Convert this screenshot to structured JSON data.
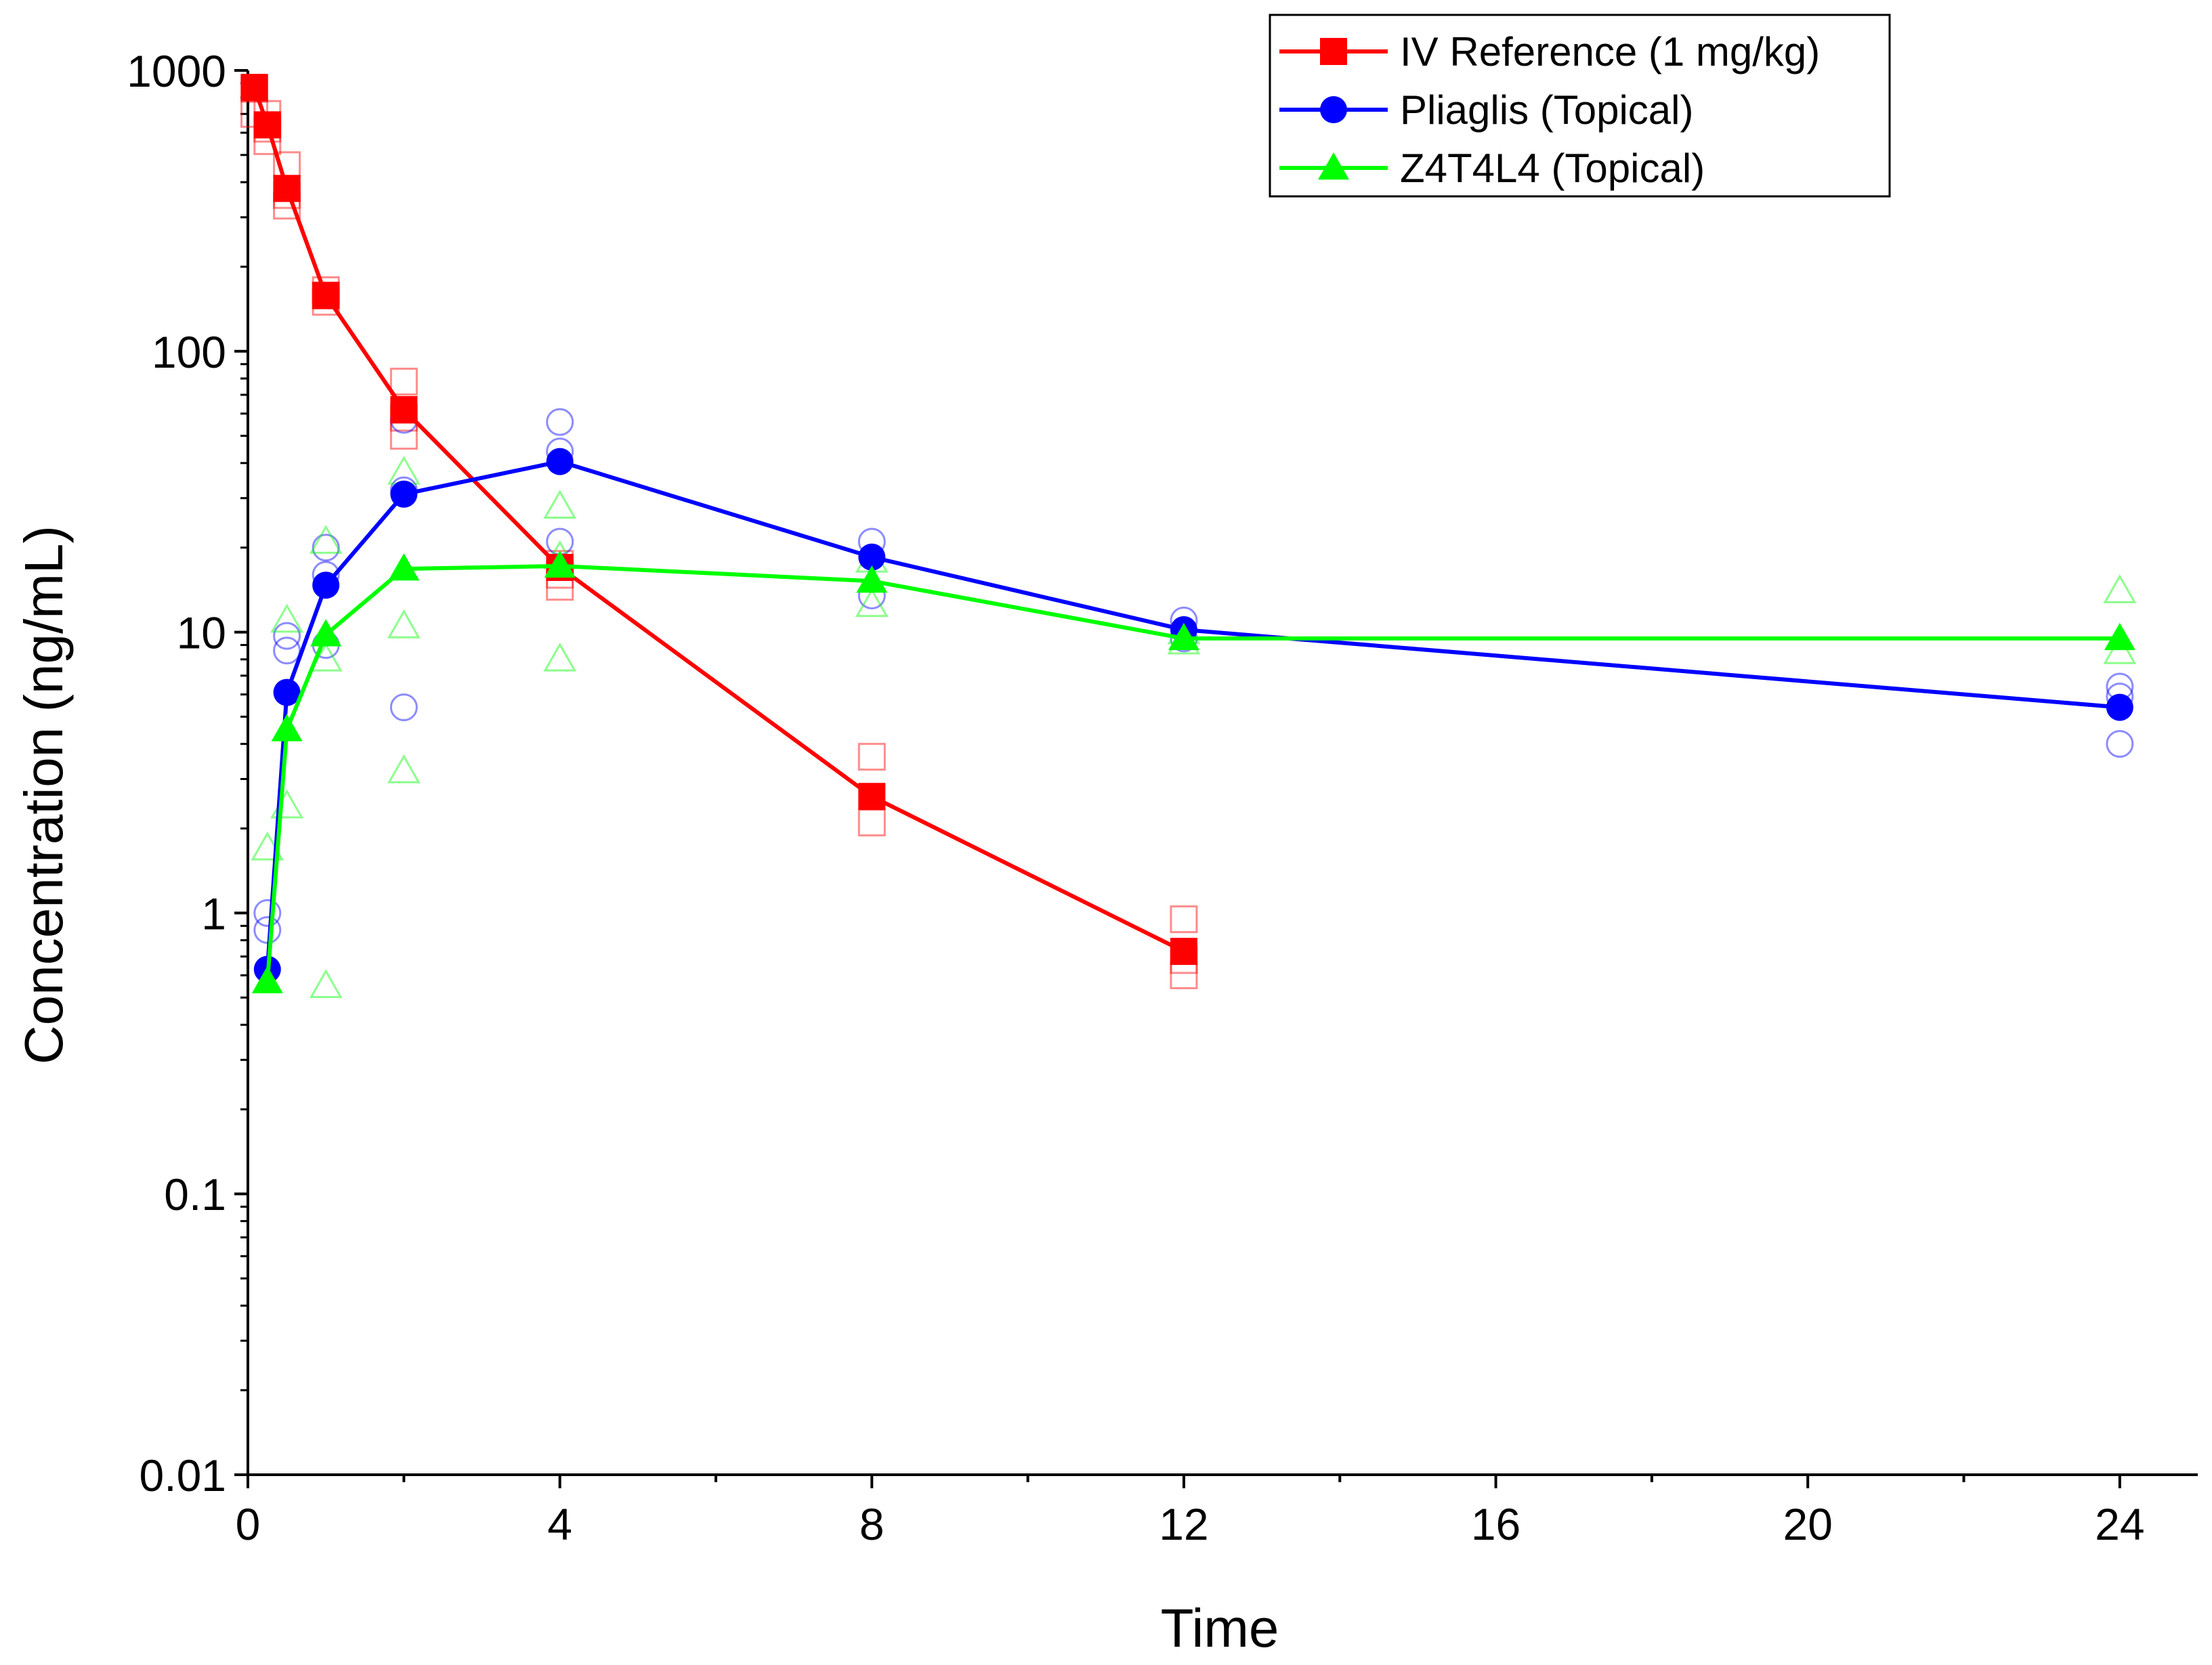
{
  "chart_data": {
    "type": "scatter",
    "title": "",
    "xlabel": "Time",
    "ylabel": "Concentration (ng/mL)",
    "xlim": [
      0,
      25
    ],
    "ylim": [
      0.01,
      1000
    ],
    "yscale": "log",
    "x_ticks": [
      0,
      4,
      8,
      12,
      16,
      20,
      24
    ],
    "y_ticks": [
      0.01,
      0.1,
      1,
      10,
      100,
      1000
    ],
    "y_tick_labels": [
      "0.01",
      "0.1",
      "1",
      "10",
      "100",
      "1000"
    ],
    "legend_position": "top-right",
    "series": [
      {
        "name": "IV Reference (1 mg/kg)",
        "color": "#ff0000",
        "marker": "square",
        "mean": {
          "x": [
            0.083,
            0.25,
            0.5,
            1,
            2,
            4,
            8,
            12
          ],
          "y": [
            870,
            640,
            380,
            158,
            62,
            17,
            2.6,
            0.73
          ]
        },
        "individual": {
          "x": [
            0.083,
            0.083,
            0.25,
            0.25,
            0.25,
            0.5,
            0.5,
            0.5,
            1,
            1,
            1,
            2,
            2,
            2,
            4,
            4,
            4,
            8,
            8,
            12,
            12,
            12
          ],
          "y": [
            860,
            700,
            700,
            560,
            620,
            460,
            330,
            360,
            165,
            150,
            158,
            78,
            50,
            58,
            17.5,
            14.5,
            16,
            3.6,
            2.1,
            0.95,
            0.6,
            0.68
          ]
        }
      },
      {
        "name": "Pliaglis (Topical)",
        "color": "#0000ff",
        "marker": "circle",
        "mean": {
          "x": [
            0.25,
            0.5,
            1,
            2,
            4,
            8,
            12,
            24
          ],
          "y": [
            0.63,
            6.1,
            14.7,
            31,
            40.5,
            18.5,
            10.2,
            5.4
          ]
        },
        "individual": {
          "x": [
            0.25,
            0.25,
            0.5,
            0.5,
            1,
            1,
            1,
            2,
            2,
            2,
            4,
            4,
            4,
            8,
            8,
            12,
            12,
            24,
            24,
            24
          ],
          "y": [
            1.0,
            0.87,
            9.7,
            8.6,
            20,
            16,
            9,
            57,
            32,
            5.4,
            56,
            44,
            21,
            21,
            13.5,
            11,
            9.5,
            6.4,
            5.9,
            4.0
          ]
        }
      },
      {
        "name": "Z4T4L4 (Topical)",
        "color": "#00ff00",
        "marker": "triangle",
        "mean": {
          "x": [
            0.25,
            0.5,
            1,
            2,
            4,
            8,
            12,
            24
          ],
          "y": [
            0.57,
            4.5,
            9.8,
            16.8,
            17.2,
            15.2,
            9.5,
            9.5
          ]
        },
        "individual": {
          "x": [
            0.25,
            0.5,
            0.5,
            1,
            1,
            1,
            2,
            2,
            2,
            4,
            4,
            4,
            8,
            8,
            12,
            12,
            24,
            24
          ],
          "y": [
            1.7,
            11,
            2.4,
            21,
            8,
            0.55,
            37,
            10.5,
            3.2,
            28,
            18.5,
            8,
            18,
            12.5,
            10,
            9.2,
            14,
            8.5
          ]
        }
      }
    ]
  }
}
